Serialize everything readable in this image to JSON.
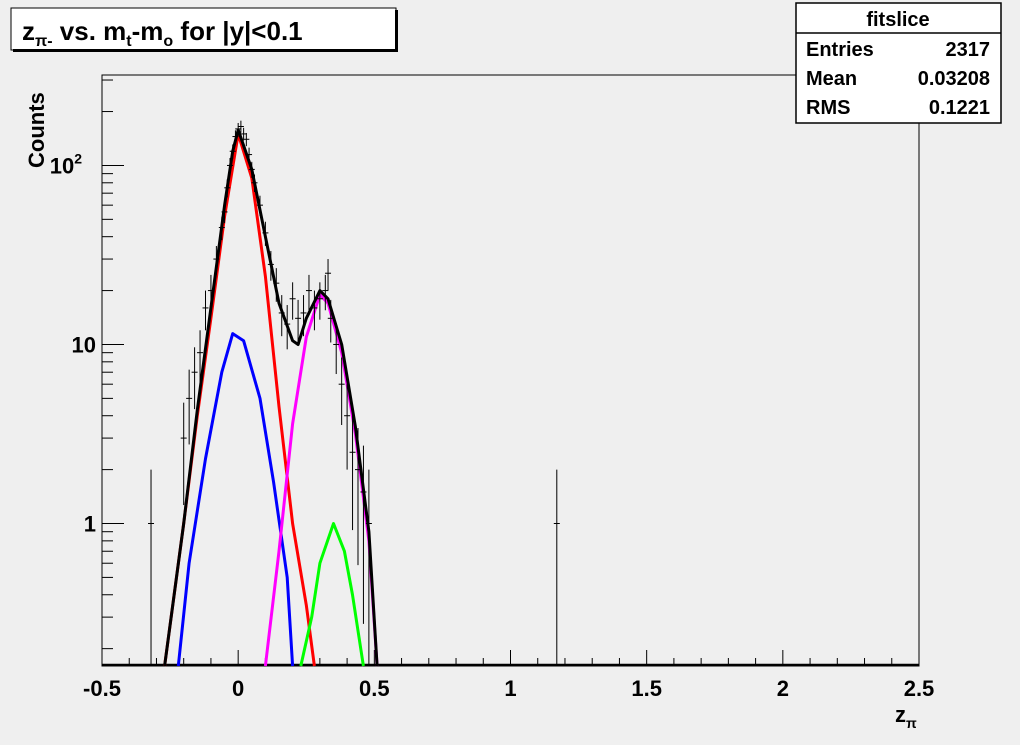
{
  "chart_data": {
    "type": "line",
    "title": {
      "main": "z",
      "main_sub": "π-",
      "rest1": " vs. m",
      "rest1_sub": "t",
      "rest2": "-m",
      "rest2_sub": "o",
      "rest3": " for |y|<0.1"
    },
    "xlabel": {
      "main": "z",
      "sub": "π"
    },
    "ylabel": "Counts",
    "xlim": [
      -0.5,
      2.5
    ],
    "ylim": [
      0.16,
      320
    ],
    "log_y": true,
    "x_ticks": [
      "-0.5",
      "0",
      "0.5",
      "1",
      "1.5",
      "2",
      "2.5"
    ],
    "x_tick_values": [
      -0.5,
      0,
      0.5,
      1,
      1.5,
      2,
      2.5
    ],
    "y_ticks": [
      {
        "value": 1,
        "base": "1",
        "exp": ""
      },
      {
        "value": 10,
        "base": "10",
        "exp": ""
      },
      {
        "value": 100,
        "base": "10",
        "exp": "2"
      }
    ],
    "stats_box": {
      "title": "fitslice",
      "rows": [
        {
          "label": "Entries",
          "value": "2317"
        },
        {
          "label": "Mean",
          "value": "0.03208"
        },
        {
          "label": "RMS",
          "value": "0.1221"
        }
      ]
    },
    "series": [
      {
        "color": "#ff0000",
        "points": [
          [
            -0.27,
            0.16
          ],
          [
            -0.2,
            1.0
          ],
          [
            -0.15,
            4.0
          ],
          [
            -0.1,
            14
          ],
          [
            -0.05,
            52
          ],
          [
            0.0,
            150
          ],
          [
            0.05,
            85
          ],
          [
            0.1,
            24
          ],
          [
            0.15,
            4.5
          ],
          [
            0.2,
            1.0
          ],
          [
            0.25,
            0.35
          ],
          [
            0.28,
            0.16
          ]
        ]
      },
      {
        "color": "#0000ff",
        "points": [
          [
            -0.22,
            0.16
          ],
          [
            -0.18,
            0.6
          ],
          [
            -0.12,
            2.3
          ],
          [
            -0.06,
            7.0
          ],
          [
            -0.02,
            11.5
          ],
          [
            0.02,
            10.5
          ],
          [
            0.08,
            5.0
          ],
          [
            0.13,
            1.7
          ],
          [
            0.18,
            0.5
          ],
          [
            0.2,
            0.16
          ]
        ]
      },
      {
        "color": "#ff00ff",
        "points": [
          [
            0.1,
            0.16
          ],
          [
            0.15,
            0.7
          ],
          [
            0.2,
            3.6
          ],
          [
            0.25,
            11
          ],
          [
            0.3,
            19
          ],
          [
            0.33,
            17
          ],
          [
            0.38,
            9.0
          ],
          [
            0.43,
            3.2
          ],
          [
            0.48,
            0.8
          ],
          [
            0.51,
            0.16
          ]
        ]
      },
      {
        "color": "#00ff00",
        "points": [
          [
            0.23,
            0.16
          ],
          [
            0.27,
            0.3
          ],
          [
            0.3,
            0.6
          ],
          [
            0.35,
            1.0
          ],
          [
            0.39,
            0.7
          ],
          [
            0.42,
            0.4
          ],
          [
            0.46,
            0.16
          ]
        ]
      },
      {
        "color": "#000000",
        "points": [
          [
            -0.27,
            0.16
          ],
          [
            -0.2,
            1.0
          ],
          [
            -0.15,
            4.3
          ],
          [
            -0.1,
            16
          ],
          [
            -0.05,
            60
          ],
          [
            -0.02,
            120
          ],
          [
            0.0,
            158
          ],
          [
            0.05,
            95
          ],
          [
            0.1,
            40
          ],
          [
            0.15,
            17
          ],
          [
            0.2,
            10.5
          ],
          [
            0.22,
            10
          ],
          [
            0.25,
            14
          ],
          [
            0.3,
            20
          ],
          [
            0.33,
            18
          ],
          [
            0.38,
            10
          ],
          [
            0.43,
            3.5
          ],
          [
            0.48,
            0.9
          ],
          [
            0.51,
            0.16
          ]
        ]
      }
    ],
    "data_points": [
      {
        "x": -0.32,
        "y": 1
      },
      {
        "x": -0.2,
        "y": 3
      },
      {
        "x": -0.18,
        "y": 5
      },
      {
        "x": -0.16,
        "y": 7
      },
      {
        "x": -0.14,
        "y": 9
      },
      {
        "x": -0.12,
        "y": 16
      },
      {
        "x": -0.1,
        "y": 20
      },
      {
        "x": -0.08,
        "y": 30
      },
      {
        "x": -0.06,
        "y": 45
      },
      {
        "x": -0.05,
        "y": 55
      },
      {
        "x": -0.04,
        "y": 75
      },
      {
        "x": -0.03,
        "y": 100
      },
      {
        "x": -0.02,
        "y": 120
      },
      {
        "x": -0.01,
        "y": 145
      },
      {
        "x": 0.0,
        "y": 160
      },
      {
        "x": 0.01,
        "y": 165
      },
      {
        "x": 0.02,
        "y": 150
      },
      {
        "x": 0.03,
        "y": 140
      },
      {
        "x": 0.04,
        "y": 115
      },
      {
        "x": 0.05,
        "y": 95
      },
      {
        "x": 0.06,
        "y": 80
      },
      {
        "x": 0.08,
        "y": 60
      },
      {
        "x": 0.1,
        "y": 42
      },
      {
        "x": 0.12,
        "y": 28
      },
      {
        "x": 0.14,
        "y": 22
      },
      {
        "x": 0.16,
        "y": 15
      },
      {
        "x": 0.18,
        "y": 13
      },
      {
        "x": 0.2,
        "y": 18
      },
      {
        "x": 0.22,
        "y": 14
      },
      {
        "x": 0.24,
        "y": 15
      },
      {
        "x": 0.26,
        "y": 20
      },
      {
        "x": 0.28,
        "y": 16
      },
      {
        "x": 0.3,
        "y": 18
      },
      {
        "x": 0.32,
        "y": 20
      },
      {
        "x": 0.33,
        "y": 25
      },
      {
        "x": 0.34,
        "y": 14
      },
      {
        "x": 0.36,
        "y": 10
      },
      {
        "x": 0.38,
        "y": 6
      },
      {
        "x": 0.4,
        "y": 4
      },
      {
        "x": 0.42,
        "y": 2.5
      },
      {
        "x": 0.44,
        "y": 2
      },
      {
        "x": 0.46,
        "y": 1.5
      },
      {
        "x": 0.48,
        "y": 1
      },
      {
        "x": 1.17,
        "y": 1
      }
    ]
  }
}
